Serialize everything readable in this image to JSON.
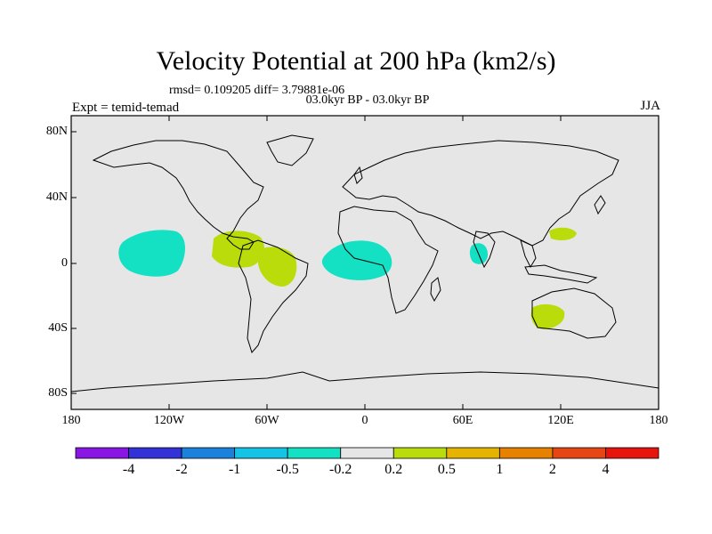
{
  "title": "Velocity Potential at 200 hPa (km2/s)",
  "stats_line": "rmsd= 0.109205  diff= 3.79881e-06",
  "subtitle": "03.0kyr BP - 03.0kyr BP",
  "experiment": "Expt = temid-temad",
  "season": "JJA",
  "lat_labels": [
    "80N",
    "40N",
    "0",
    "40S",
    "80S"
  ],
  "lon_labels": [
    "180",
    "120W",
    "60W",
    "0",
    "60E",
    "120E",
    "180"
  ],
  "colorbar": {
    "labels": [
      "-4",
      "-2",
      "-1",
      "-0.5",
      "-0.2",
      "0.2",
      "0.5",
      "1",
      "2",
      "4"
    ],
    "colors": [
      "#8a16e6",
      "#3232d6",
      "#1a82dc",
      "#14c3e6",
      "#14e0c3",
      "#e6e6e6",
      "#b9dc0a",
      "#e6b400",
      "#e68200",
      "#e64614",
      "#e6140a"
    ]
  },
  "map_colors": {
    "background": "#e6e6e6",
    "negative_contour_fill": "#14e0c3",
    "positive_contour_fill": "#b9dc0a",
    "coastline": "#000000"
  }
}
